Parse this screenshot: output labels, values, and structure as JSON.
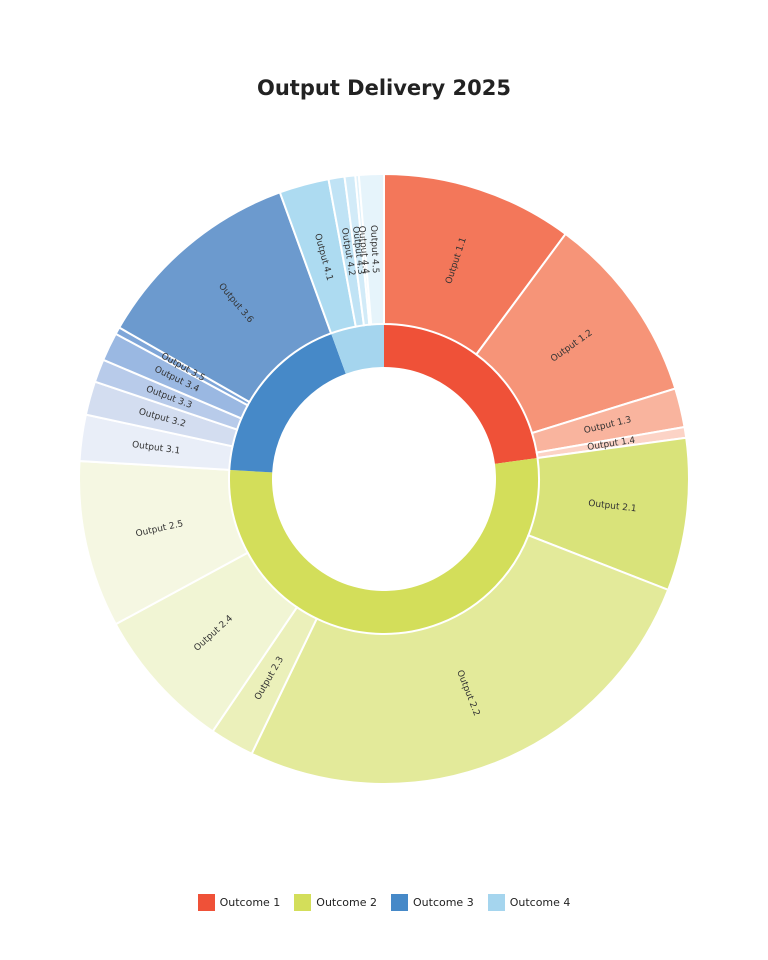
{
  "chart_data": {
    "type": "sunburst",
    "title": "Output Delivery 2025",
    "outcomes": [
      {
        "name": "Outcome 1",
        "color": "#EF5138",
        "outputs": [
          {
            "name": "Output 1.1",
            "value": 10.8,
            "color": "#F3775A"
          },
          {
            "name": "Output 1.2",
            "value": 10.7,
            "color": "#F69478"
          },
          {
            "name": "Output 1.3",
            "value": 2.2,
            "color": "#F9B49E"
          },
          {
            "name": "Output 1.4",
            "value": 0.6,
            "color": "#FCD3C6"
          }
        ]
      },
      {
        "name": "Outcome 2",
        "color": "#D3DE5A",
        "outputs": [
          {
            "name": "Output 2.1",
            "value": 8.6,
            "color": "#D9E37A"
          },
          {
            "name": "Output 2.2",
            "value": 27.9,
            "color": "#E3EA9A"
          },
          {
            "name": "Output 2.3",
            "value": 2.5,
            "color": "#EBF0BA"
          },
          {
            "name": "Output 2.4",
            "value": 8.1,
            "color": "#F1F5D4"
          },
          {
            "name": "Output 2.5",
            "value": 9.4,
            "color": "#F5F7E2"
          }
        ]
      },
      {
        "name": "Outcome 3",
        "color": "#4689C8",
        "outputs": [
          {
            "name": "Output 3.1",
            "value": 2.6,
            "color": "#E9EEF8"
          },
          {
            "name": "Output 3.2",
            "value": 1.9,
            "color": "#D3DDF0"
          },
          {
            "name": "Output 3.3",
            "value": 1.3,
            "color": "#B8CBEA"
          },
          {
            "name": "Output 3.4",
            "value": 1.6,
            "color": "#9AB8E2"
          },
          {
            "name": "Output 3.5",
            "value": 0.4,
            "color": "#7FA6D8"
          },
          {
            "name": "Output 3.6",
            "value": 11.9,
            "color": "#6C9ACE"
          }
        ]
      },
      {
        "name": "Outcome 4",
        "color": "#A5D5EE",
        "outputs": [
          {
            "name": "Output 4.1",
            "value": 2.8,
            "color": "#ADDBF1"
          },
          {
            "name": "Output 4.2",
            "value": 0.9,
            "color": "#C0E3F5"
          },
          {
            "name": "Output 4.3",
            "value": 0.6,
            "color": "#D2EBF8"
          },
          {
            "name": "Output 4.4",
            "value": 0.2,
            "color": "#DFF1FA"
          },
          {
            "name": "Output 4.5",
            "value": 1.4,
            "color": "#E6F4FB"
          }
        ]
      }
    ],
    "legend_position": "bottom-center"
  }
}
